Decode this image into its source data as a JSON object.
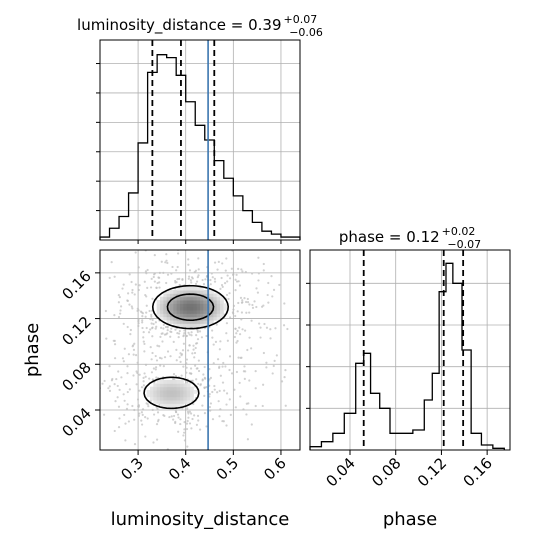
{
  "chart_data": [
    {
      "type": "histogram",
      "panel": "luminosity_distance marginal",
      "title_main": "luminosity_distance = 0.39",
      "title_sup": "+0.07",
      "title_sub": "−0.06",
      "xlim": [
        0.22,
        0.64
      ],
      "bin_edges": [
        0.22,
        0.24,
        0.26,
        0.28,
        0.3,
        0.32,
        0.34,
        0.36,
        0.38,
        0.4,
        0.42,
        0.44,
        0.46,
        0.48,
        0.5,
        0.52,
        0.54,
        0.56,
        0.58,
        0.6,
        0.62,
        0.64
      ],
      "counts": [
        1,
        4,
        8,
        16,
        33,
        57,
        63,
        62,
        56,
        47,
        39,
        34,
        27,
        21,
        15,
        10,
        6,
        3,
        2,
        1,
        1
      ],
      "ymax": 68,
      "quantiles": [
        0.33,
        0.39,
        0.46
      ],
      "truth": 0.447,
      "colors": {
        "truth": "#3b76af",
        "hist": "#000000"
      }
    },
    {
      "type": "contour",
      "panel": "phase vs luminosity_distance",
      "xlabel": "luminosity_distance",
      "ylabel": "phase",
      "xlim": [
        0.22,
        0.64
      ],
      "ylim": [
        0.005,
        0.18
      ],
      "xticks": [
        "0.3",
        "0.4",
        "0.5",
        "0.6"
      ],
      "xtick_values": [
        0.3,
        0.4,
        0.5,
        0.6
      ],
      "yticks": [
        "0.04",
        "0.08",
        "0.12",
        "0.16"
      ],
      "ytick_values": [
        0.04,
        0.08,
        0.12,
        0.16
      ],
      "modes": [
        {
          "center": [
            0.41,
            0.13
          ],
          "spread": [
            0.055,
            0.013
          ],
          "weight": 0.62
        },
        {
          "center": [
            0.37,
            0.055
          ],
          "spread": [
            0.055,
            0.013
          ],
          "weight": 0.38
        }
      ],
      "truth": 0.447,
      "colors": {
        "truth": "#3b76af",
        "contour": "#000000",
        "points": "#c8c8c8"
      }
    },
    {
      "type": "histogram",
      "panel": "phase marginal",
      "title_main": "phase = 0.12",
      "title_sup": "+0.02",
      "title_sub": "−0.07",
      "xlim": [
        0.005,
        0.18
      ],
      "bin_edges": [
        0.005,
        0.015,
        0.025,
        0.035,
        0.045,
        0.052,
        0.058,
        0.066,
        0.075,
        0.085,
        0.095,
        0.105,
        0.112,
        0.118,
        0.124,
        0.13,
        0.138,
        0.146,
        0.155,
        0.165,
        0.175
      ],
      "counts": [
        2,
        5,
        10,
        22,
        52,
        58,
        34,
        25,
        10,
        10,
        12,
        30,
        46,
        95,
        112,
        100,
        60,
        10,
        3,
        1
      ],
      "ymax": 120,
      "quantiles": [
        0.052,
        0.122,
        0.139
      ],
      "xticks": [
        "0.04",
        "0.08",
        "0.12",
        "0.16"
      ],
      "xtick_values": [
        0.04,
        0.08,
        0.12,
        0.16
      ],
      "xlabel": "phase",
      "colors": {
        "hist": "#000000"
      }
    }
  ]
}
